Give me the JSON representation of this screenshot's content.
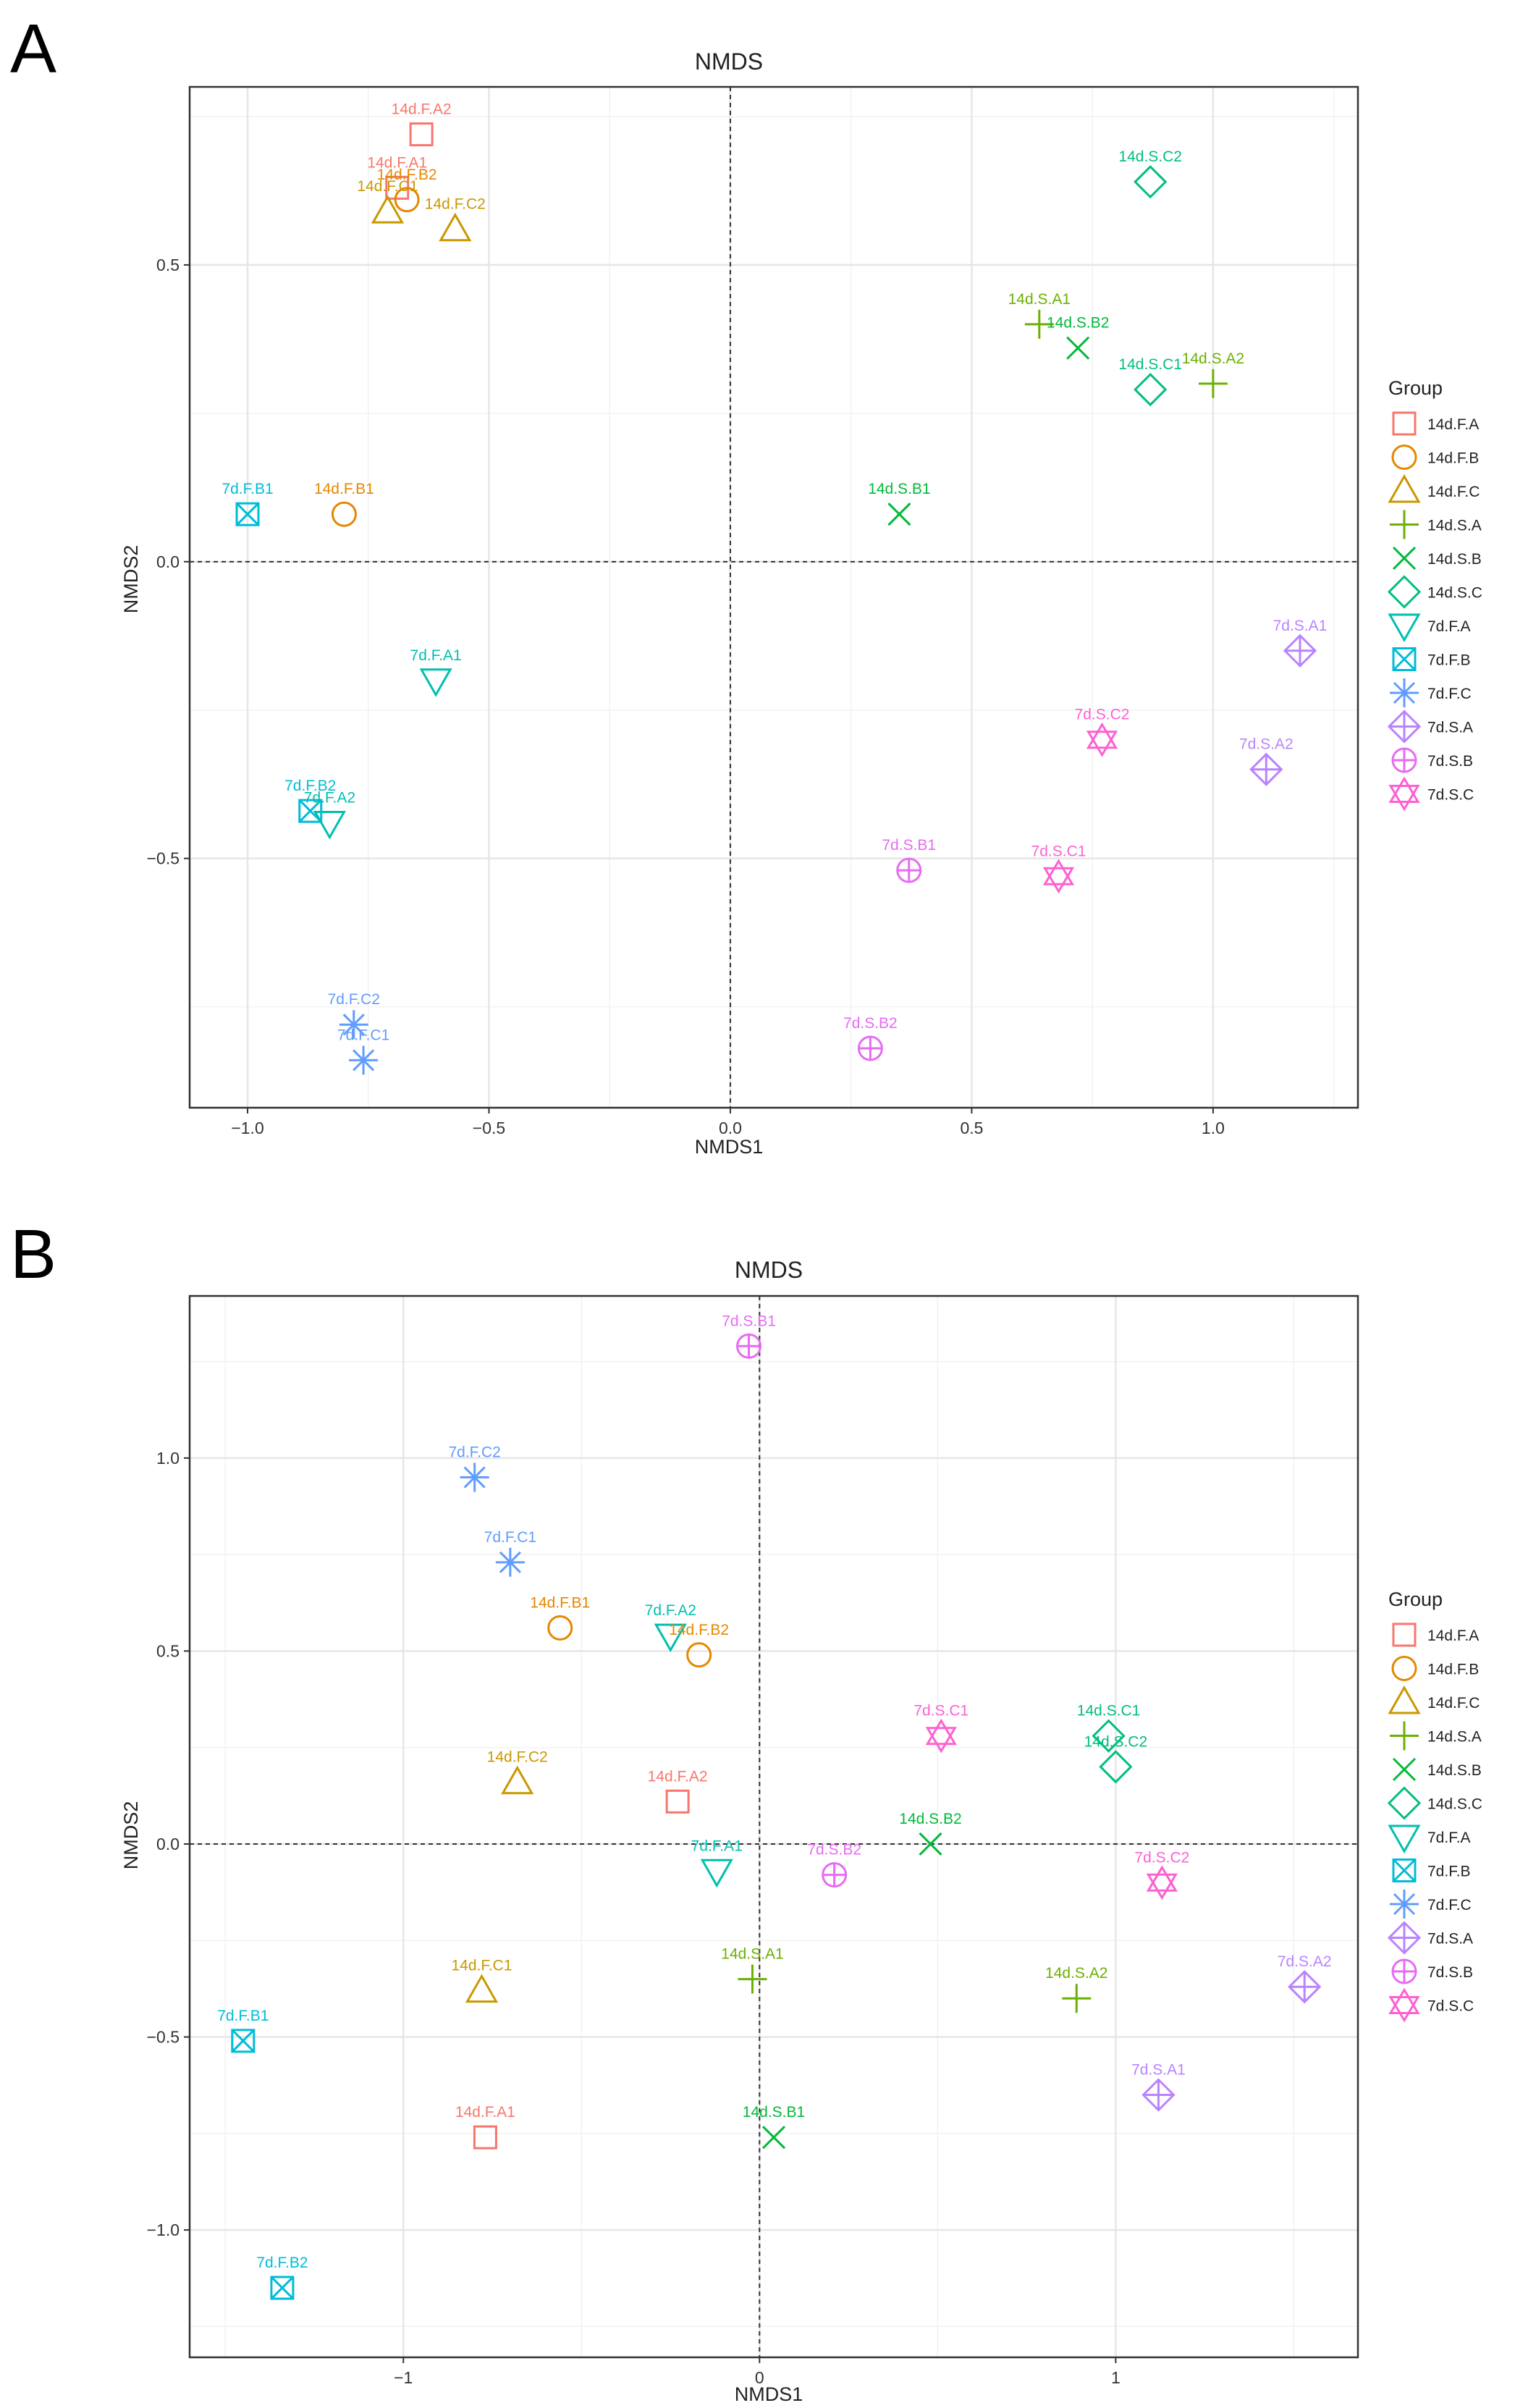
{
  "groups": [
    {
      "name": "14d.F.A",
      "shape": "square",
      "color": "#F8766D"
    },
    {
      "name": "14d.F.B",
      "shape": "circle",
      "color": "#E58700"
    },
    {
      "name": "14d.F.C",
      "shape": "triangle",
      "color": "#C99800"
    },
    {
      "name": "14d.S.A",
      "shape": "plus",
      "color": "#6BB100"
    },
    {
      "name": "14d.S.B",
      "shape": "cross",
      "color": "#00BA38"
    },
    {
      "name": "14d.S.C",
      "shape": "diamond",
      "color": "#00BF7D"
    },
    {
      "name": "7d.F.A",
      "shape": "triangle-down",
      "color": "#00C0AF"
    },
    {
      "name": "7d.F.B",
      "shape": "square-cross",
      "color": "#00BCD8"
    },
    {
      "name": "7d.F.C",
      "shape": "asterisk",
      "color": "#619CFF"
    },
    {
      "name": "7d.S.A",
      "shape": "diamond-plus",
      "color": "#B983FF"
    },
    {
      "name": "7d.S.B",
      "shape": "circle-plus",
      "color": "#E76BF3"
    },
    {
      "name": "7d.S.C",
      "shape": "star-of-david",
      "color": "#FD61D1"
    }
  ],
  "chart_data": [
    {
      "panel_label": "A",
      "type": "scatter",
      "title": "NMDS",
      "xlabel": "NMDS1",
      "ylabel": "NMDS2",
      "xlim": [
        -1.12,
        1.3
      ],
      "ylim": [
        -0.92,
        0.8
      ],
      "xticks": [
        -1.0,
        -0.5,
        0.0,
        0.5,
        1.0
      ],
      "xtick_labels": [
        "−1.0",
        "−0.5",
        "0.0",
        "0.5",
        "1.0"
      ],
      "yticks": [
        -0.5,
        0.0,
        0.5
      ],
      "ytick_labels": [
        "−0.5",
        "0.0",
        "0.5"
      ],
      "grid": true,
      "zero_lines": true,
      "legend_title": "Group",
      "legend_position": "right",
      "points": [
        {
          "label": "14d.F.A2",
          "group": "14d.F.A",
          "x": -0.64,
          "y": 0.72
        },
        {
          "label": "14d.F.A1",
          "group": "14d.F.A",
          "x": -0.69,
          "y": 0.63
        },
        {
          "label": "14d.F.B2",
          "group": "14d.F.B",
          "x": -0.67,
          "y": 0.61
        },
        {
          "label": "14d.F.B1",
          "group": "14d.F.B",
          "x": -0.8,
          "y": 0.08
        },
        {
          "label": "14d.F.C1",
          "group": "14d.F.C",
          "x": -0.71,
          "y": 0.59
        },
        {
          "label": "14d.F.C2",
          "group": "14d.F.C",
          "x": -0.57,
          "y": 0.56
        },
        {
          "label": "14d.S.C2",
          "group": "14d.S.C",
          "x": 0.87,
          "y": 0.64
        },
        {
          "label": "14d.S.A1",
          "group": "14d.S.A",
          "x": 0.64,
          "y": 0.4
        },
        {
          "label": "14d.S.B2",
          "group": "14d.S.B",
          "x": 0.72,
          "y": 0.36
        },
        {
          "label": "14d.S.C1",
          "group": "14d.S.C",
          "x": 0.87,
          "y": 0.29
        },
        {
          "label": "14d.S.A2",
          "group": "14d.S.A",
          "x": 1.0,
          "y": 0.3
        },
        {
          "label": "14d.S.B1",
          "group": "14d.S.B",
          "x": 0.35,
          "y": 0.08
        },
        {
          "label": "7d.F.B1",
          "group": "7d.F.B",
          "x": -1.0,
          "y": 0.08
        },
        {
          "label": "7d.F.A1",
          "group": "7d.F.A",
          "x": -0.61,
          "y": -0.2
        },
        {
          "label": "7d.F.B2",
          "group": "7d.F.B",
          "x": -0.87,
          "y": -0.42
        },
        {
          "label": "7d.F.A2",
          "group": "7d.F.A",
          "x": -0.83,
          "y": -0.44
        },
        {
          "label": "7d.F.C2",
          "group": "7d.F.C",
          "x": -0.78,
          "y": -0.78
        },
        {
          "label": "7d.F.C1",
          "group": "7d.F.C",
          "x": -0.76,
          "y": -0.84
        },
        {
          "label": "7d.S.A1",
          "group": "7d.S.A",
          "x": 1.18,
          "y": -0.15
        },
        {
          "label": "7d.S.C2",
          "group": "7d.S.C",
          "x": 0.77,
          "y": -0.3
        },
        {
          "label": "7d.S.A2",
          "group": "7d.S.A",
          "x": 1.11,
          "y": -0.35
        },
        {
          "label": "7d.S.B1",
          "group": "7d.S.B",
          "x": 0.37,
          "y": -0.52
        },
        {
          "label": "7d.S.C1",
          "group": "7d.S.C",
          "x": 0.68,
          "y": -0.53
        },
        {
          "label": "7d.S.B2",
          "group": "7d.S.B",
          "x": 0.29,
          "y": -0.82
        }
      ]
    },
    {
      "panel_label": "B",
      "type": "scatter",
      "title": "NMDS",
      "xlabel": "NMDS1",
      "ylabel": "NMDS2",
      "xlim": [
        -1.6,
        1.68
      ],
      "ylim": [
        -1.33,
        1.42
      ],
      "xticks": [
        -1,
        0,
        1
      ],
      "xtick_labels": [
        "−1",
        "0",
        "1"
      ],
      "yticks": [
        -1.0,
        -0.5,
        0.0,
        0.5,
        1.0
      ],
      "ytick_labels": [
        "−1.0",
        "−0.5",
        "0.0",
        "0.5",
        "1.0"
      ],
      "grid": true,
      "zero_lines": true,
      "legend_title": "Group",
      "legend_position": "right",
      "points": [
        {
          "label": "7d.S.B1",
          "group": "7d.S.B",
          "x": -0.03,
          "y": 1.29
        },
        {
          "label": "7d.F.C2",
          "group": "7d.F.C",
          "x": -0.8,
          "y": 0.95
        },
        {
          "label": "7d.F.C1",
          "group": "7d.F.C",
          "x": -0.7,
          "y": 0.73
        },
        {
          "label": "14d.F.B1",
          "group": "14d.F.B",
          "x": -0.56,
          "y": 0.56
        },
        {
          "label": "7d.F.A2",
          "group": "7d.F.A",
          "x": -0.25,
          "y": 0.54
        },
        {
          "label": "14d.F.B2",
          "group": "14d.F.B",
          "x": -0.17,
          "y": 0.49
        },
        {
          "label": "7d.S.C1",
          "group": "7d.S.C",
          "x": 0.51,
          "y": 0.28
        },
        {
          "label": "14d.S.C1",
          "group": "14d.S.C",
          "x": 0.98,
          "y": 0.28
        },
        {
          "label": "14d.S.C2",
          "group": "14d.S.C",
          "x": 1.0,
          "y": 0.2
        },
        {
          "label": "14d.F.C2",
          "group": "14d.F.C",
          "x": -0.68,
          "y": 0.16
        },
        {
          "label": "14d.F.A2",
          "group": "14d.F.A",
          "x": -0.23,
          "y": 0.11
        },
        {
          "label": "14d.S.B2",
          "group": "14d.S.B",
          "x": 0.48,
          "y": 0.0
        },
        {
          "label": "7d.F.A1",
          "group": "7d.F.A",
          "x": -0.12,
          "y": -0.07
        },
        {
          "label": "7d.S.B2",
          "group": "7d.S.B",
          "x": 0.21,
          "y": -0.08
        },
        {
          "label": "7d.S.C2",
          "group": "7d.S.C",
          "x": 1.13,
          "y": -0.1
        },
        {
          "label": "14d.F.C1",
          "group": "14d.F.C",
          "x": -0.78,
          "y": -0.38
        },
        {
          "label": "14d.S.A1",
          "group": "14d.S.A",
          "x": -0.02,
          "y": -0.35
        },
        {
          "label": "14d.S.A2",
          "group": "14d.S.A",
          "x": 0.89,
          "y": -0.4
        },
        {
          "label": "7d.S.A2",
          "group": "7d.S.A",
          "x": 1.53,
          "y": -0.37
        },
        {
          "label": "7d.F.B1",
          "group": "7d.F.B",
          "x": -1.45,
          "y": -0.51
        },
        {
          "label": "7d.S.A1",
          "group": "7d.S.A",
          "x": 1.12,
          "y": -0.65
        },
        {
          "label": "14d.F.A1",
          "group": "14d.F.A",
          "x": -0.77,
          "y": -0.76
        },
        {
          "label": "14d.S.B1",
          "group": "14d.S.B",
          "x": 0.04,
          "y": -0.76
        },
        {
          "label": "7d.F.B2",
          "group": "7d.F.B",
          "x": -1.34,
          "y": -1.15
        }
      ]
    }
  ]
}
